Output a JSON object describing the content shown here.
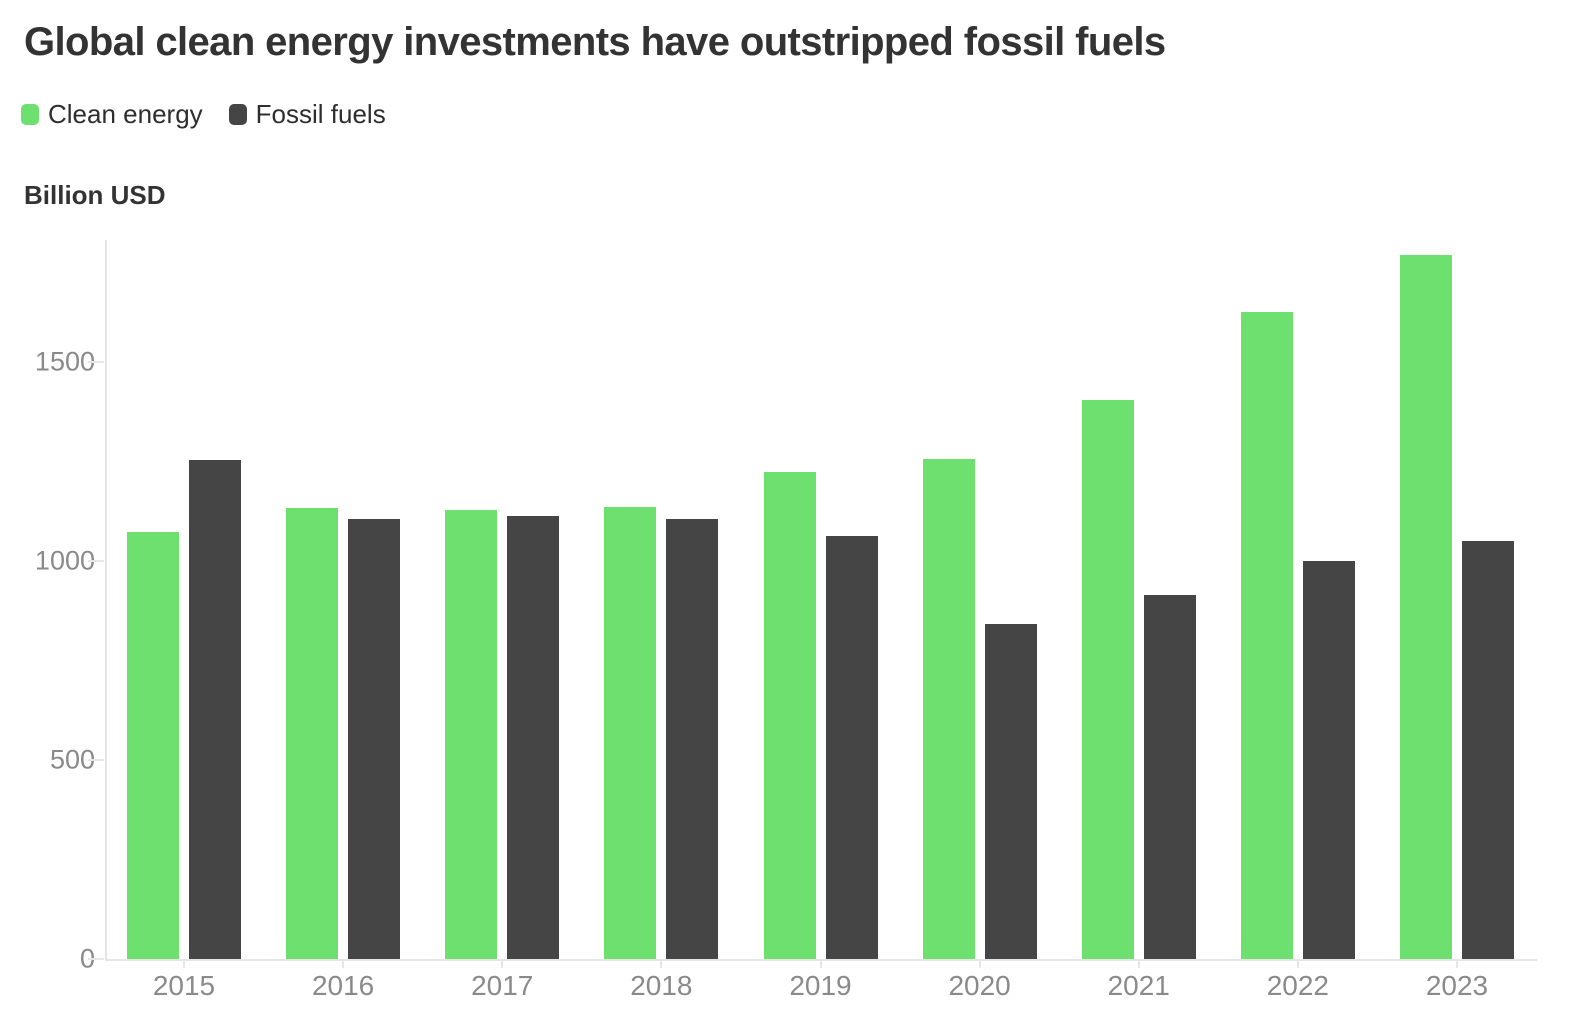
{
  "title": "Global clean energy investments have outstripped fossil fuels",
  "y_axis_title": "Billion USD",
  "chart_data": {
    "type": "bar",
    "title": "Global clean energy investments have outstripped fossil fuels",
    "ylabel": "Billion USD",
    "xlabel": "",
    "categories": [
      "2015",
      "2016",
      "2017",
      "2018",
      "2019",
      "2020",
      "2021",
      "2022",
      "2023"
    ],
    "series": [
      {
        "name": "Clean energy",
        "color": "#6ee070",
        "values": [
          1073,
          1133,
          1128,
          1136,
          1225,
          1256,
          1404,
          1626,
          1770
        ]
      },
      {
        "name": "Fossil fuels",
        "color": "#454545",
        "values": [
          1254,
          1106,
          1113,
          1106,
          1064,
          842,
          915,
          1000,
          1050
        ]
      }
    ],
    "yticks": [
      0,
      500,
      1000,
      1500
    ],
    "ylim": [
      0,
      1807
    ],
    "grid": false,
    "legend_position": "top-left",
    "axis_color": "#e6e6e6",
    "tick_label_color": "#8a8a8a",
    "title_color": "#333333"
  }
}
